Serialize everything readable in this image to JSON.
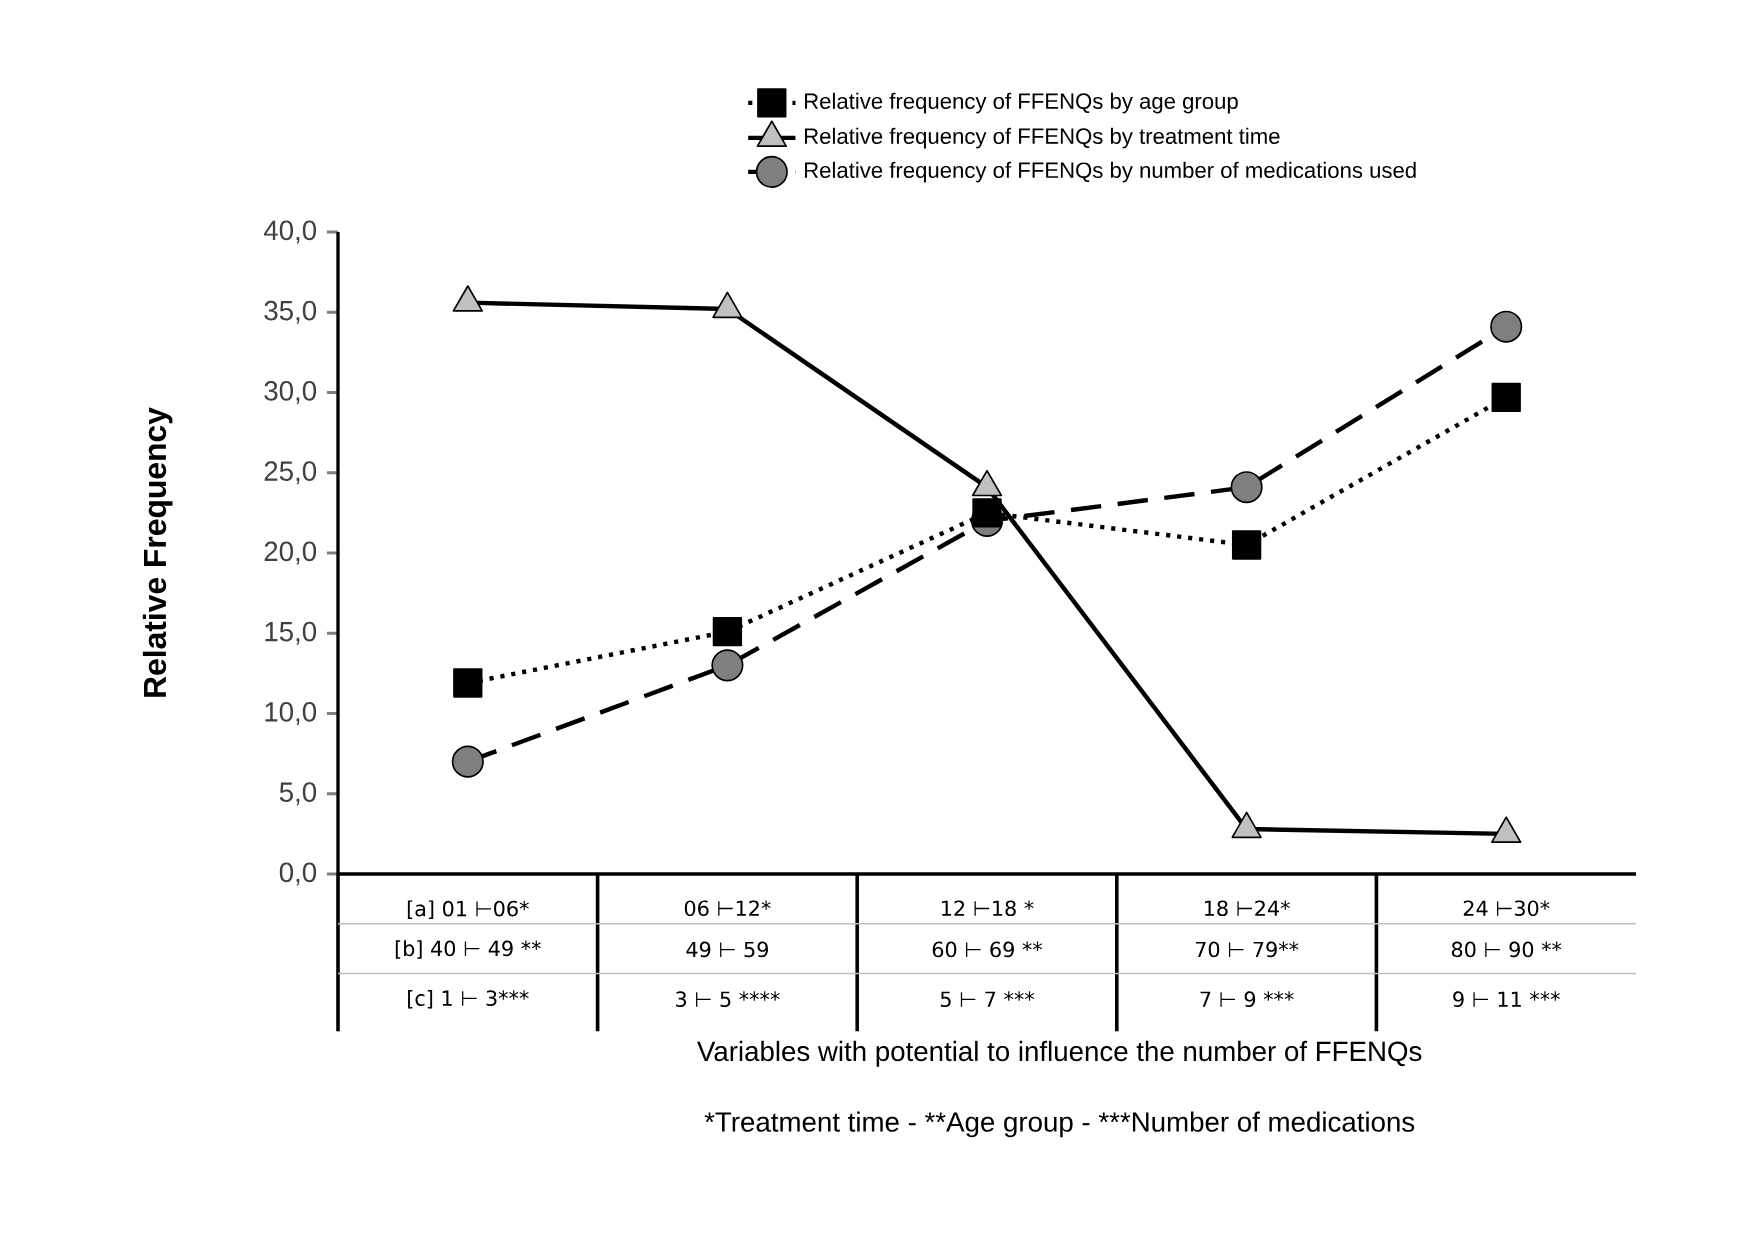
{
  "chart_data": {
    "type": "line",
    "ylabel": "Relative Frequency",
    "xlabel": "Variables with potential to influence the number of FFENQs",
    "categories": [
      "[a] 01 ⊢06*",
      "06 ⊢12*",
      "12 ⊢18  *",
      "18 ⊢24*",
      "24 ⊢30*"
    ],
    "annotations": [
      "[b] 40  ⊢ 49 **",
      "49  ⊢ 59",
      "60  ⊢ 69  **",
      "70  ⊢ 79**",
      "80  ⊢ 90 **",
      "[c] 1  ⊢ 3***",
      "3  ⊢ 5  ****",
      "5 ⊢ 7  ***",
      "7 ⊢ 9  ***",
      "9  ⊢ 11 ***",
      "*Treatment time - ",
      "**Age group - ",
      "***Number of medications"
    ],
    "ylim": [
      0,
      40
    ],
    "yticks": [
      {
        "value": 0,
        "label": "0,0"
      },
      {
        "value": 5,
        "label": "5,0"
      },
      {
        "value": 10,
        "label": "10,0"
      },
      {
        "value": 15,
        "label": "15,0"
      },
      {
        "value": 20,
        "label": "20,0"
      },
      {
        "value": 25,
        "label": "25,0"
      },
      {
        "value": 30,
        "label": "30,0"
      },
      {
        "value": 35,
        "label": "35,0"
      },
      {
        "value": 40,
        "label": "40,0"
      }
    ],
    "legend": "top",
    "series": [
      {
        "name": "Relative frequency of FFENQs by age group",
        "color": "#000000",
        "marker": "square",
        "line_style": "dotted",
        "values": [
          11.9,
          15.1,
          22.5,
          20.5,
          29.7
        ]
      },
      {
        "name": "Relative frequency of FFENQs by treatment time",
        "color": "#c0c0c0",
        "marker": "triangle",
        "line_style": "solid",
        "values": [
          35.6,
          35.2,
          24.1,
          2.8,
          2.5
        ]
      },
      {
        "name": "Relative frequency of FFENQs by number of medications used",
        "color": "#7f7f7f",
        "marker": "circle",
        "line_style": "dashed",
        "values": [
          7.0,
          13.0,
          22.0,
          24.1,
          34.1
        ]
      }
    ]
  }
}
